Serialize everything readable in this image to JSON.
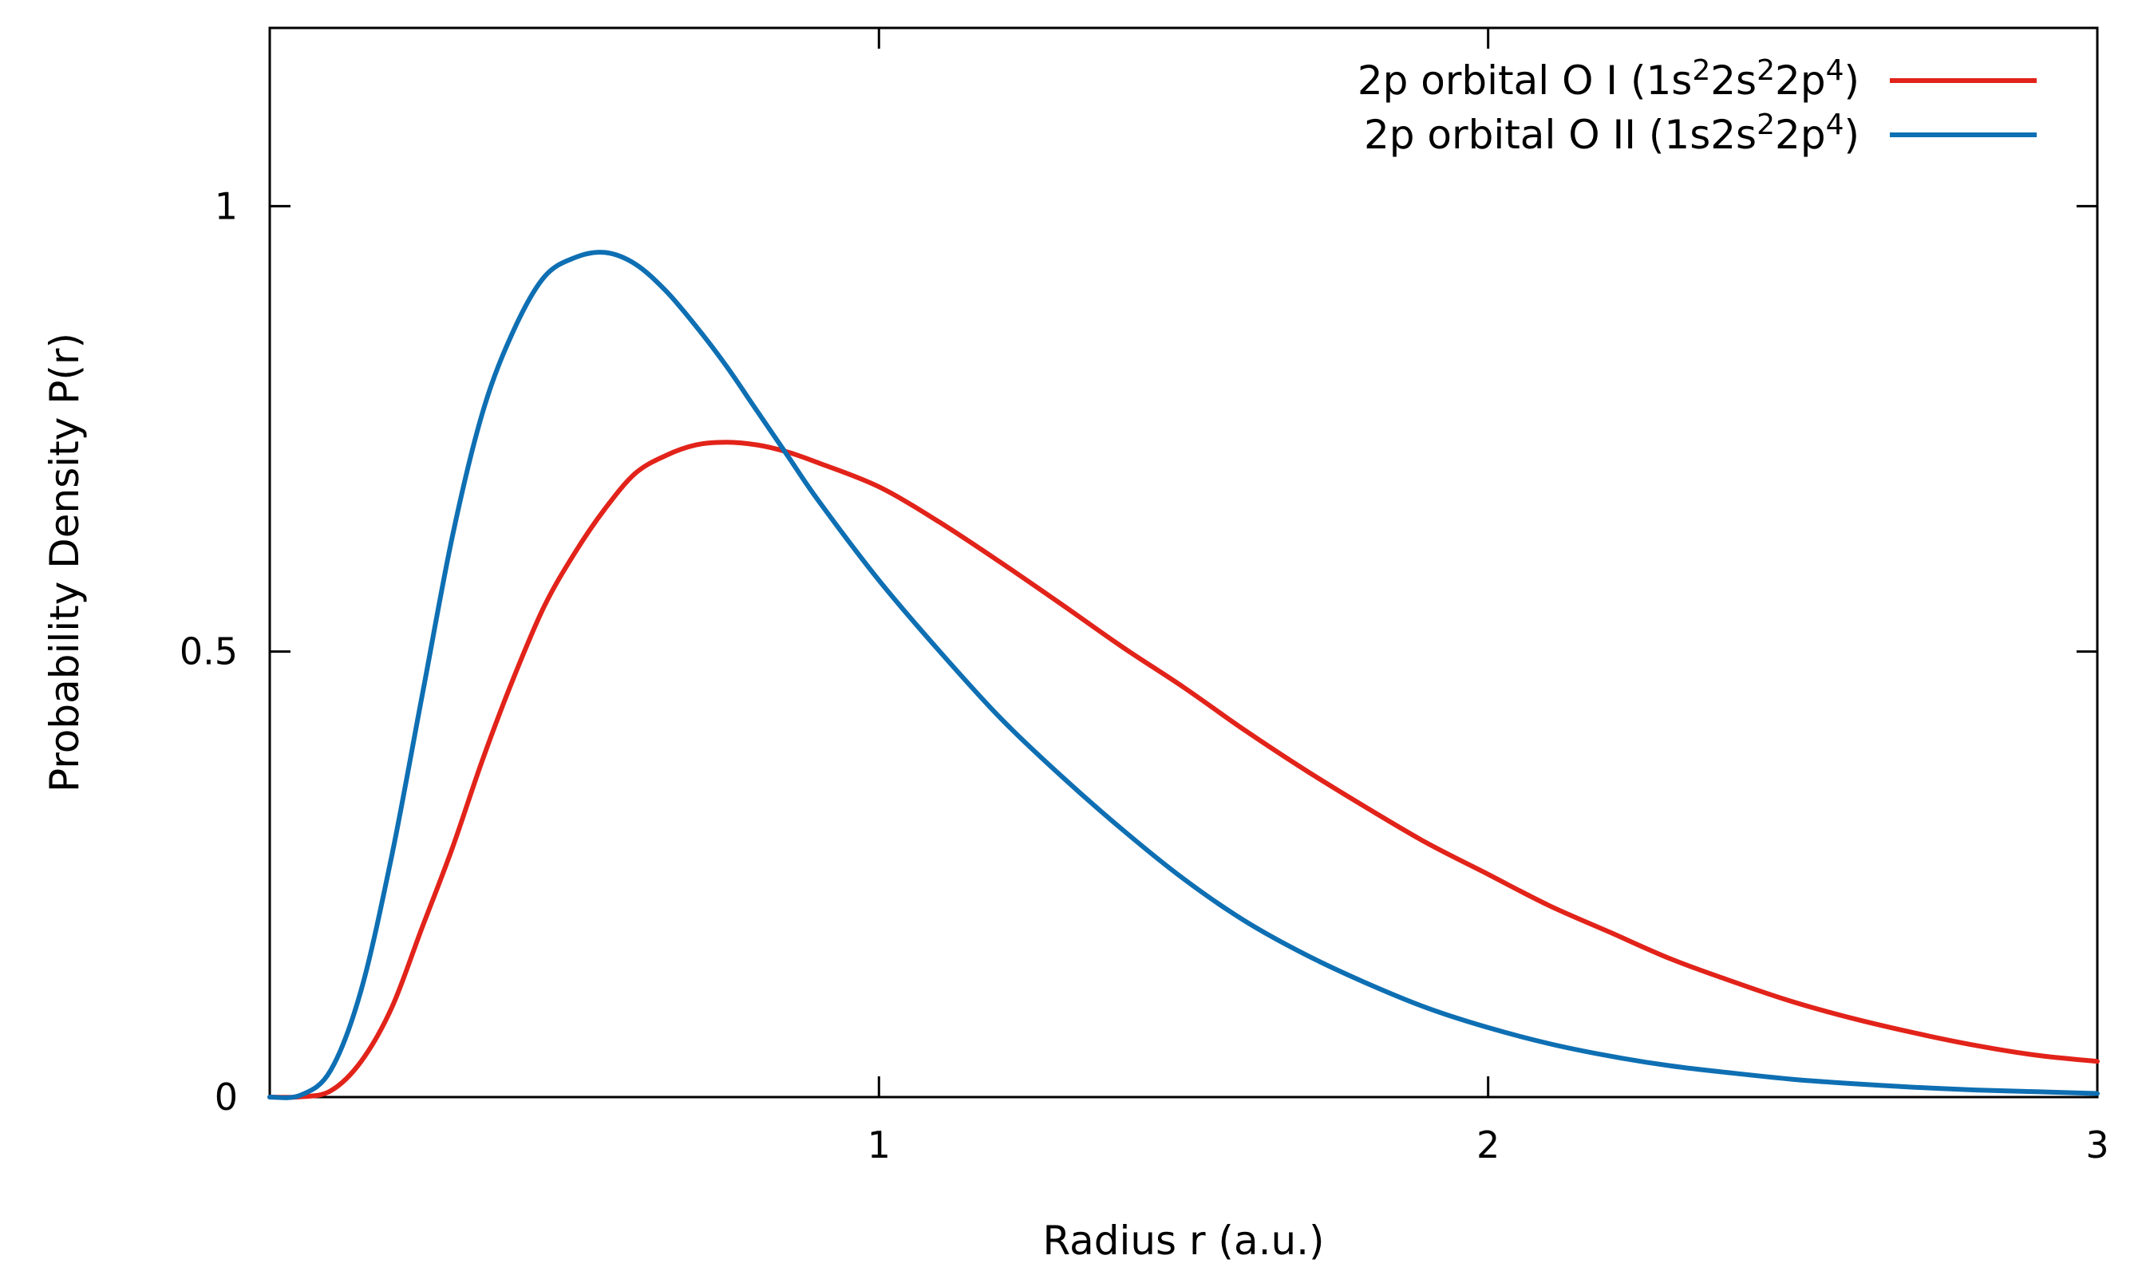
{
  "chart_data": {
    "type": "line",
    "title": "",
    "xlabel": "Radius r (a.u.)",
    "ylabel": "Probability Density P(r)",
    "xlim": [
      0,
      3
    ],
    "ylim": [
      0,
      1.2
    ],
    "x_ticks": [
      {
        "value": 1,
        "label": "1"
      },
      {
        "value": 2,
        "label": "2"
      },
      {
        "value": 3,
        "label": "3"
      }
    ],
    "y_ticks": [
      {
        "value": 0,
        "label": "0"
      },
      {
        "value": 0.5,
        "label": "0.5"
      },
      {
        "value": 1,
        "label": "1"
      }
    ],
    "grid": false,
    "legend_position": "top-right",
    "series": [
      {
        "legend": {
          "base": "2p orbital O I (1s",
          "sup1": "2",
          "mid1": "2s",
          "sup2": "2",
          "mid2": "2p",
          "sup3": "4",
          "end": ")"
        },
        "color": "#e2231a",
        "x": [
          0,
          0.05,
          0.1,
          0.15,
          0.2,
          0.25,
          0.3,
          0.35,
          0.4,
          0.45,
          0.5,
          0.55,
          0.6,
          0.65,
          0.7,
          0.75,
          0.8,
          0.85,
          0.9,
          1.0,
          1.1,
          1.2,
          1.3,
          1.4,
          1.5,
          1.6,
          1.7,
          1.8,
          1.9,
          2.0,
          2.1,
          2.2,
          2.3,
          2.4,
          2.5,
          2.6,
          2.7,
          2.8,
          2.9,
          3.0
        ],
        "y": [
          0,
          0.0003,
          0.007,
          0.04,
          0.1,
          0.19,
          0.28,
          0.38,
          0.47,
          0.55,
          0.61,
          0.66,
          0.7,
          0.72,
          0.732,
          0.735,
          0.732,
          0.724,
          0.712,
          0.685,
          0.645,
          0.6,
          0.553,
          0.505,
          0.46,
          0.412,
          0.367,
          0.325,
          0.285,
          0.25,
          0.215,
          0.185,
          0.155,
          0.13,
          0.107,
          0.088,
          0.072,
          0.058,
          0.047,
          0.04
        ]
      },
      {
        "legend": {
          "base": "2p orbital O II  (1s2s",
          "sup1": "2",
          "mid1": "2p",
          "sup2": "4",
          "mid2": "",
          "sup3": "",
          "end": ")"
        },
        "color": "#0e6fb3",
        "x": [
          0,
          0.05,
          0.1,
          0.15,
          0.2,
          0.25,
          0.3,
          0.35,
          0.4,
          0.45,
          0.5,
          0.55,
          0.6,
          0.65,
          0.7,
          0.75,
          0.8,
          0.85,
          0.9,
          1.0,
          1.1,
          1.2,
          1.3,
          1.4,
          1.5,
          1.6,
          1.7,
          1.8,
          1.9,
          2.0,
          2.1,
          2.2,
          2.3,
          2.4,
          2.5,
          2.6,
          2.7,
          2.8,
          2.9,
          3.0
        ],
        "y": [
          0,
          0.002,
          0.03,
          0.12,
          0.27,
          0.45,
          0.63,
          0.77,
          0.86,
          0.92,
          0.942,
          0.948,
          0.935,
          0.905,
          0.865,
          0.82,
          0.77,
          0.72,
          0.67,
          0.58,
          0.5,
          0.425,
          0.36,
          0.3,
          0.245,
          0.198,
          0.16,
          0.128,
          0.1,
          0.078,
          0.06,
          0.046,
          0.035,
          0.027,
          0.02,
          0.015,
          0.011,
          0.008,
          0.006,
          0.004
        ]
      }
    ]
  }
}
